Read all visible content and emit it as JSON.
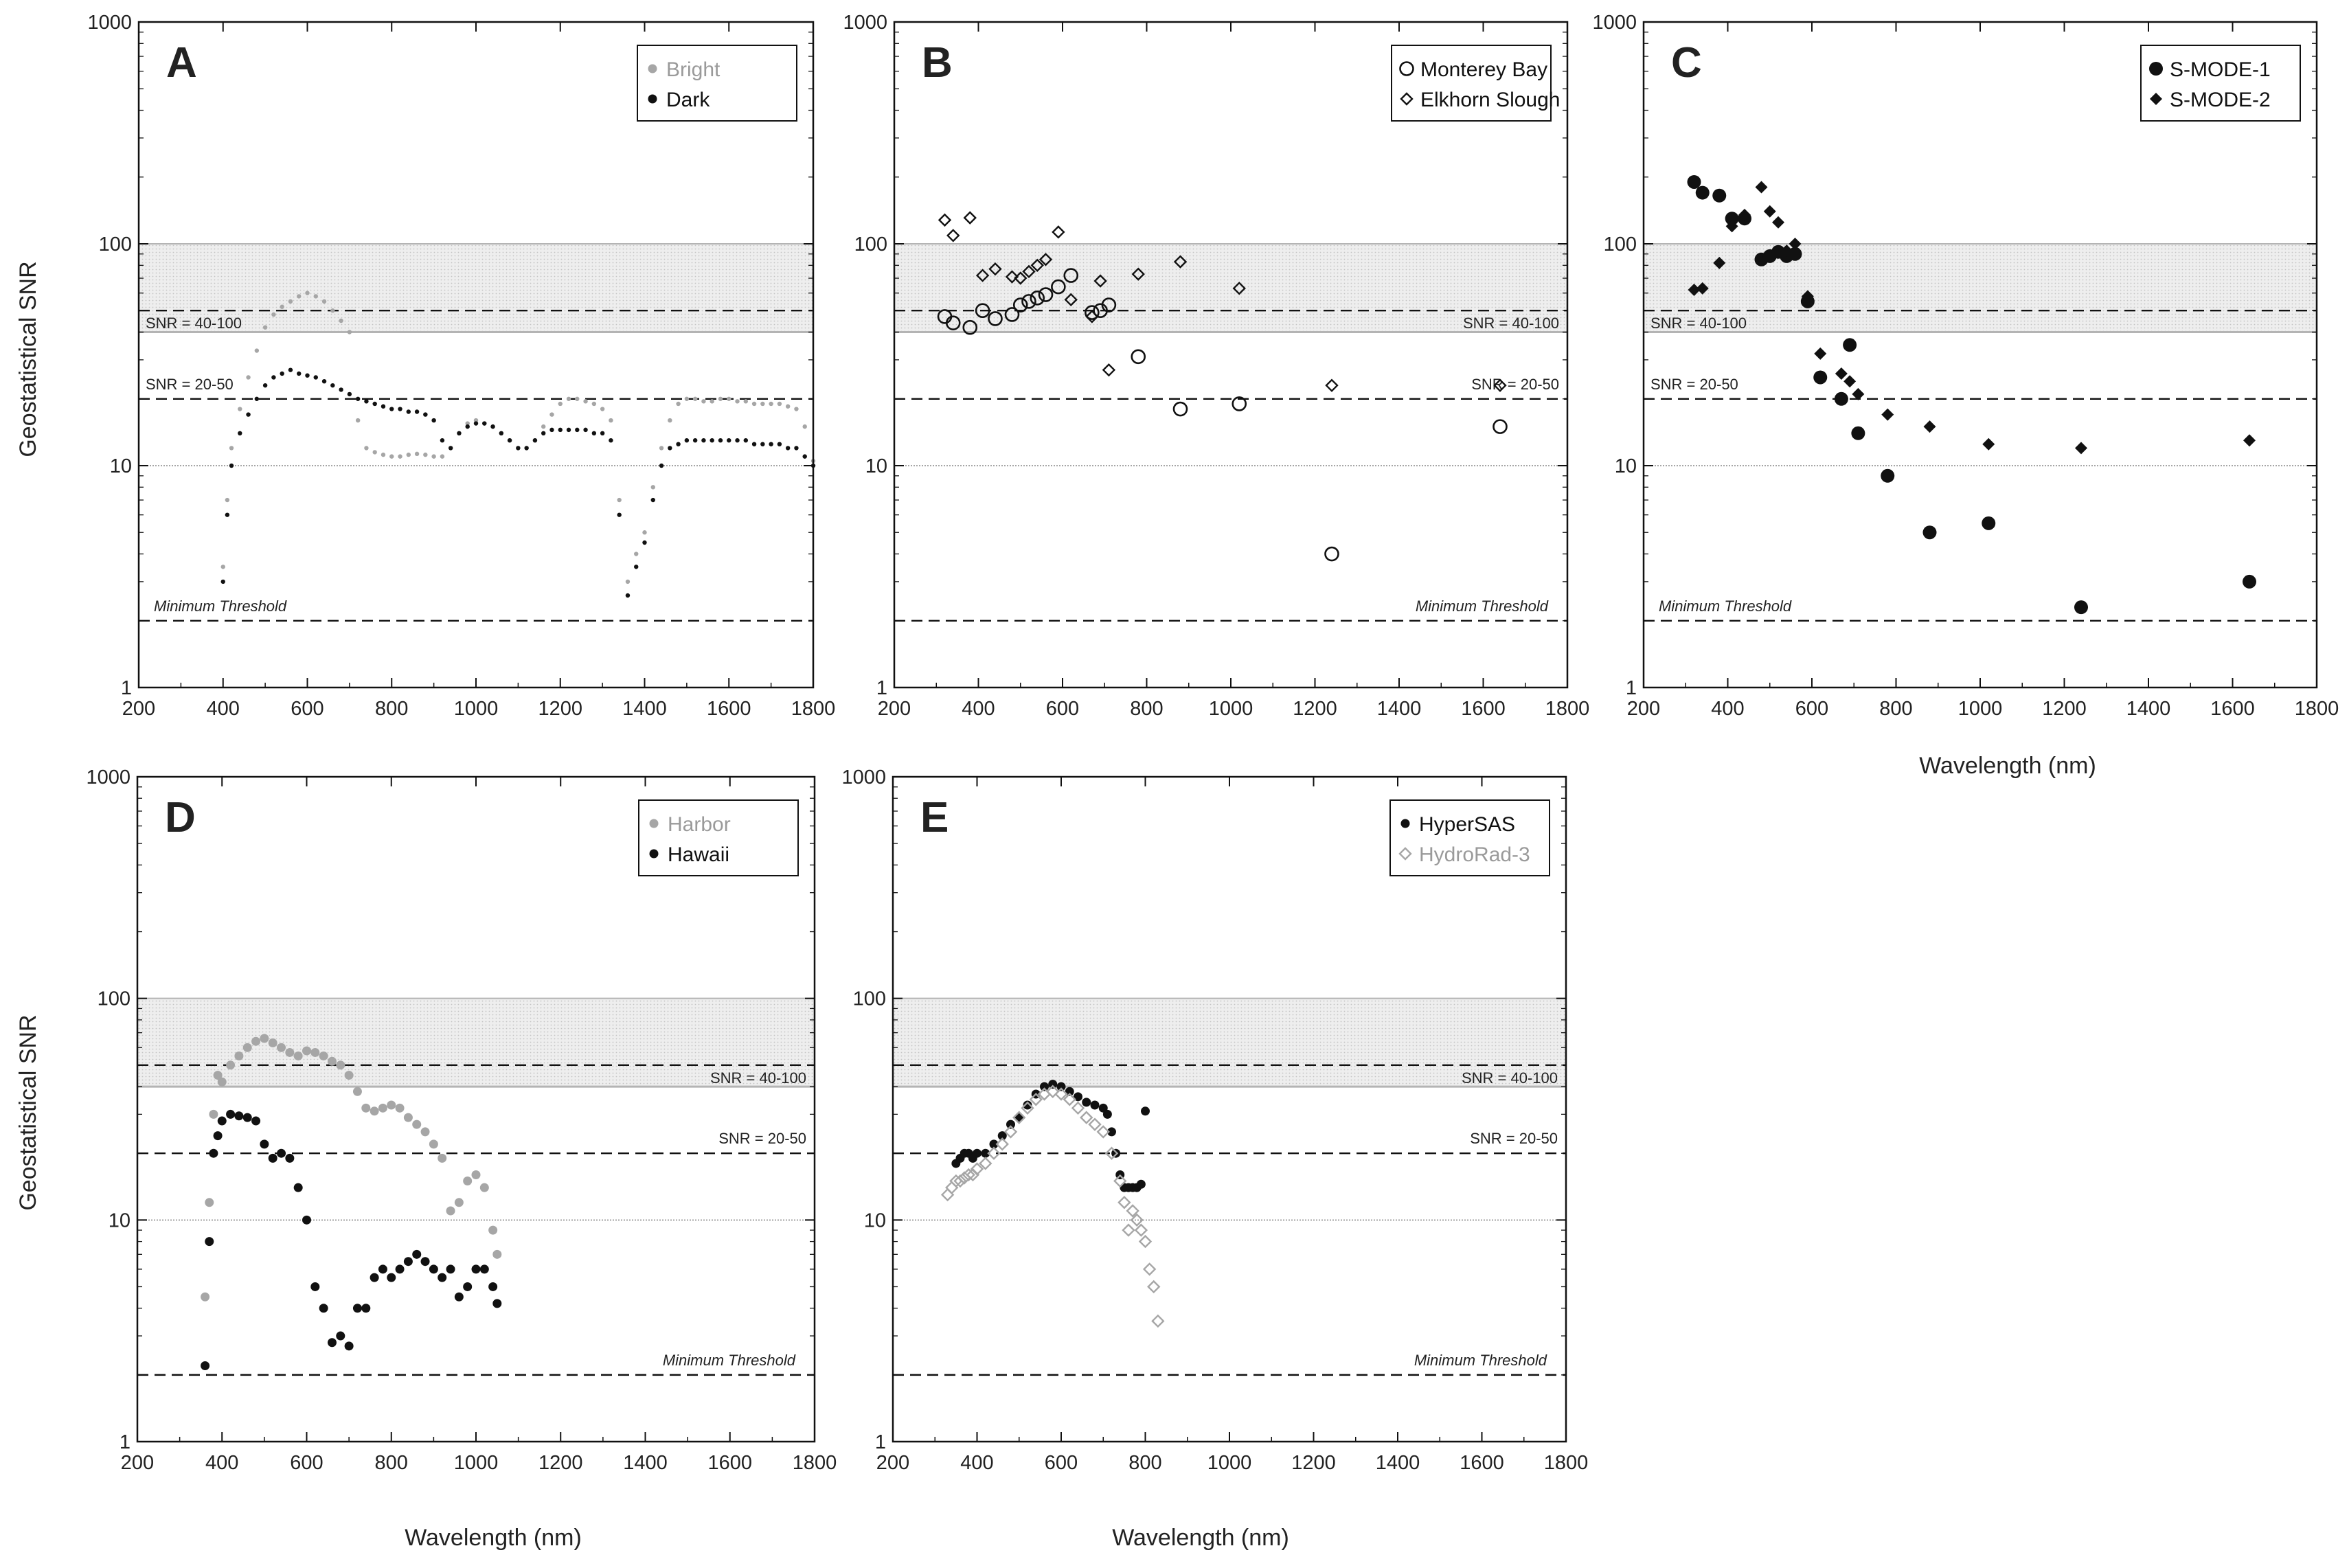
{
  "figure": {
    "y_axis_label": "Geostatistical SNR",
    "x_axis_label": "Wavelength (nm)",
    "x_ticks": [
      "200",
      "400",
      "600",
      "800",
      "1000",
      "1200",
      "1400",
      "1600",
      "1800"
    ],
    "y_ticks": [
      "1",
      "10",
      "100",
      "1000"
    ],
    "annotations": {
      "band_high": "SNR = 40-100",
      "band_low": "SNR = 20-50",
      "threshold": "Minimum Threshold"
    },
    "colors": {
      "black": "#111111",
      "gray": "#a6a6a6",
      "band": "#ececec",
      "band_line": "#b4b4b4"
    }
  },
  "chart_data": [
    {
      "panel": "A",
      "type": "scatter",
      "xlim": [
        200,
        1800
      ],
      "ylim": [
        1,
        1000
      ],
      "yscale": "log",
      "xlabel": "",
      "ylabel": "Geostatistical SNR",
      "legend": "top-right",
      "series": [
        {
          "name": "Bright",
          "color": "#a6a6a6",
          "marker": "dot-small",
          "x": [
            400,
            410,
            420,
            440,
            460,
            480,
            500,
            520,
            540,
            560,
            580,
            600,
            620,
            640,
            660,
            680,
            700,
            720,
            740,
            760,
            780,
            800,
            820,
            840,
            860,
            880,
            900,
            920,
            940,
            960,
            980,
            1000,
            1020,
            1040,
            1060,
            1080,
            1100,
            1120,
            1140,
            1160,
            1180,
            1200,
            1220,
            1240,
            1260,
            1280,
            1300,
            1320,
            1340,
            1360,
            1380,
            1400,
            1420,
            1440,
            1460,
            1480,
            1500,
            1520,
            1540,
            1560,
            1580,
            1600,
            1620,
            1640,
            1660,
            1680,
            1700,
            1720,
            1740,
            1760,
            1780,
            1800
          ],
          "y": [
            3.5,
            7,
            12,
            18,
            25,
            33,
            42,
            48,
            52,
            55,
            58,
            60,
            58,
            55,
            50,
            45,
            40,
            16,
            12,
            11.5,
            11.2,
            11,
            11,
            11.2,
            11.3,
            11.2,
            11,
            11,
            12,
            14,
            15.5,
            16,
            15.5,
            15,
            14,
            13,
            12,
            12,
            13,
            15,
            17,
            19,
            20,
            20,
            19.5,
            19,
            18,
            16,
            7,
            3,
            4,
            5,
            8,
            12,
            16,
            19,
            20,
            20,
            19.5,
            19.5,
            20,
            20,
            19.5,
            19.5,
            19,
            19,
            19,
            19,
            18.5,
            18,
            15,
            10.5
          ]
        },
        {
          "name": "Dark",
          "color": "#111111",
          "marker": "dot-small",
          "x": [
            400,
            410,
            420,
            440,
            460,
            480,
            500,
            520,
            540,
            560,
            580,
            600,
            620,
            640,
            660,
            680,
            700,
            720,
            740,
            760,
            780,
            800,
            820,
            840,
            860,
            880,
            900,
            920,
            940,
            960,
            980,
            1000,
            1020,
            1040,
            1060,
            1080,
            1100,
            1120,
            1140,
            1160,
            1180,
            1200,
            1220,
            1240,
            1260,
            1280,
            1300,
            1320,
            1340,
            1360,
            1380,
            1400,
            1420,
            1440,
            1460,
            1480,
            1500,
            1520,
            1540,
            1560,
            1580,
            1600,
            1620,
            1640,
            1660,
            1680,
            1700,
            1720,
            1740,
            1760,
            1780,
            1800
          ],
          "y": [
            3,
            6,
            10,
            14,
            17,
            20,
            23,
            25,
            26,
            27,
            26,
            25.5,
            25,
            24,
            23,
            22,
            21,
            20,
            19.5,
            19,
            18.5,
            18,
            18,
            17.5,
            17.5,
            17,
            16,
            13,
            12,
            14,
            15,
            15.5,
            15.5,
            15,
            14,
            13,
            12,
            12,
            13,
            14,
            14.5,
            14.5,
            14.5,
            14.5,
            14.5,
            14,
            14,
            13,
            6,
            2.6,
            3.5,
            4.5,
            7,
            10,
            12,
            12.5,
            13,
            13,
            13,
            13,
            13,
            13,
            13,
            13,
            12.5,
            12.5,
            12.5,
            12.5,
            12,
            12,
            11,
            10
          ]
        }
      ]
    },
    {
      "panel": "B",
      "type": "scatter",
      "xlim": [
        200,
        1800
      ],
      "ylim": [
        1,
        1000
      ],
      "yscale": "log",
      "xlabel": "",
      "ylabel": "",
      "legend": "top-right",
      "series": [
        {
          "name": "Monterey Bay",
          "color": "#111111",
          "marker": "circle-open",
          "x": [
            320,
            340,
            380,
            410,
            440,
            480,
            500,
            520,
            540,
            560,
            590,
            620,
            670,
            690,
            710,
            780,
            880,
            1020,
            1240,
            1640
          ],
          "y": [
            47,
            44,
            42,
            50,
            46,
            48,
            53,
            55,
            57,
            59,
            64,
            72,
            49,
            50,
            53,
            31,
            18,
            19,
            4,
            15
          ]
        },
        {
          "name": "Elkhorn Slough",
          "color": "#111111",
          "marker": "diamond-open",
          "x": [
            320,
            340,
            380,
            410,
            440,
            480,
            500,
            520,
            540,
            560,
            590,
            620,
            670,
            690,
            710,
            780,
            880,
            1020,
            1240,
            1640
          ],
          "y": [
            128,
            109,
            131,
            72,
            77,
            71,
            70,
            75,
            80,
            85,
            113,
            56,
            47,
            68,
            27,
            73,
            83,
            63,
            23,
            23
          ]
        }
      ]
    },
    {
      "panel": "C",
      "type": "scatter",
      "xlim": [
        200,
        1800
      ],
      "ylim": [
        1,
        1000
      ],
      "yscale": "log",
      "xlabel": "Wavelength (nm)",
      "ylabel": "",
      "legend": "top-right",
      "series": [
        {
          "name": "S-MODE-1",
          "color": "#111111",
          "marker": "circle-filled",
          "x": [
            320,
            340,
            380,
            410,
            440,
            480,
            500,
            520,
            540,
            560,
            590,
            620,
            670,
            690,
            710,
            780,
            880,
            1020,
            1240,
            1640
          ],
          "y": [
            190,
            170,
            165,
            130,
            130,
            85,
            88,
            92,
            88,
            90,
            55,
            25,
            20,
            35,
            14,
            9,
            5,
            5.5,
            2.3,
            3
          ]
        },
        {
          "name": "S-MODE-2",
          "color": "#111111",
          "marker": "diamond-filled",
          "x": [
            320,
            340,
            380,
            410,
            440,
            480,
            500,
            520,
            540,
            560,
            590,
            620,
            670,
            690,
            710,
            780,
            880,
            1020,
            1240,
            1640
          ],
          "y": [
            62,
            63,
            82,
            120,
            135,
            180,
            140,
            125,
            93,
            100,
            58,
            32,
            26,
            24,
            21,
            17,
            15,
            12.5,
            12,
            13
          ]
        }
      ]
    },
    {
      "panel": "D",
      "type": "scatter",
      "xlim": [
        200,
        1800
      ],
      "ylim": [
        1,
        1000
      ],
      "yscale": "log",
      "xlabel": "Wavelength (nm)",
      "ylabel": "Geostatistical SNR",
      "legend": "top-right",
      "series": [
        {
          "name": "Harbor",
          "color": "#a6a6a6",
          "marker": "dot",
          "x": [
            360,
            370,
            380,
            390,
            400,
            420,
            440,
            460,
            480,
            500,
            520,
            540,
            560,
            580,
            600,
            620,
            640,
            660,
            680,
            700,
            720,
            740,
            760,
            780,
            800,
            820,
            840,
            860,
            880,
            900,
            920,
            940,
            960,
            980,
            1000,
            1020,
            1040,
            1050
          ],
          "y": [
            4.5,
            12,
            30,
            45,
            42,
            50,
            55,
            60,
            64,
            66,
            63,
            60,
            57,
            55,
            58,
            57,
            55,
            52,
            50,
            45,
            38,
            32,
            31,
            32,
            33,
            32,
            29,
            27,
            25,
            22,
            19,
            11,
            12,
            15,
            16,
            14,
            9,
            7
          ]
        },
        {
          "name": "Hawaii",
          "color": "#111111",
          "marker": "dot",
          "x": [
            360,
            370,
            380,
            390,
            400,
            420,
            440,
            460,
            480,
            500,
            520,
            540,
            560,
            580,
            600,
            620,
            640,
            660,
            680,
            700,
            720,
            740,
            760,
            780,
            800,
            820,
            840,
            860,
            880,
            900,
            920,
            940,
            960,
            980,
            1000,
            1020,
            1040,
            1050
          ],
          "y": [
            2.2,
            8,
            20,
            24,
            28,
            30,
            29.5,
            29,
            28,
            22,
            19,
            20,
            19,
            14,
            10,
            5,
            4,
            2.8,
            3,
            2.7,
            4,
            4,
            5.5,
            6,
            5.5,
            6,
            6.5,
            7,
            6.5,
            6,
            5.5,
            6,
            4.5,
            5,
            6,
            6,
            5,
            4.2
          ]
        }
      ]
    },
    {
      "panel": "E",
      "type": "scatter",
      "xlim": [
        200,
        1800
      ],
      "ylim": [
        1,
        1000
      ],
      "yscale": "log",
      "xlabel": "Wavelength (nm)",
      "ylabel": "",
      "legend": "top-right",
      "series": [
        {
          "name": "HyperSAS",
          "color": "#111111",
          "marker": "dot",
          "x": [
            350,
            360,
            370,
            380,
            390,
            400,
            420,
            440,
            460,
            480,
            500,
            520,
            540,
            560,
            580,
            600,
            620,
            640,
            660,
            680,
            700,
            710,
            720,
            730,
            740,
            750,
            760,
            770,
            780,
            790,
            800
          ],
          "y": [
            18,
            19,
            20,
            20,
            19,
            20,
            20,
            22,
            24,
            27,
            29,
            33,
            37,
            40,
            41,
            40,
            38,
            36,
            34,
            33,
            32,
            30,
            25,
            20,
            16,
            14,
            14,
            14,
            14,
            14.5,
            31
          ]
        },
        {
          "name": "HydroRad-3",
          "color": "#a6a6a6",
          "marker": "diamond-open",
          "x": [
            330,
            340,
            350,
            360,
            370,
            380,
            390,
            400,
            420,
            440,
            460,
            480,
            500,
            520,
            540,
            560,
            580,
            600,
            620,
            640,
            660,
            680,
            700,
            720,
            740,
            750,
            760,
            770,
            780,
            790,
            800,
            810,
            820,
            830
          ],
          "y": [
            13,
            14,
            15,
            15,
            15.5,
            16,
            16,
            17,
            18,
            20,
            22,
            25,
            29,
            32,
            35,
            37,
            38,
            37,
            35,
            32,
            29,
            27,
            25,
            20,
            15,
            12,
            9,
            11,
            10,
            9,
            8,
            6,
            5,
            3.5
          ]
        }
      ]
    }
  ]
}
